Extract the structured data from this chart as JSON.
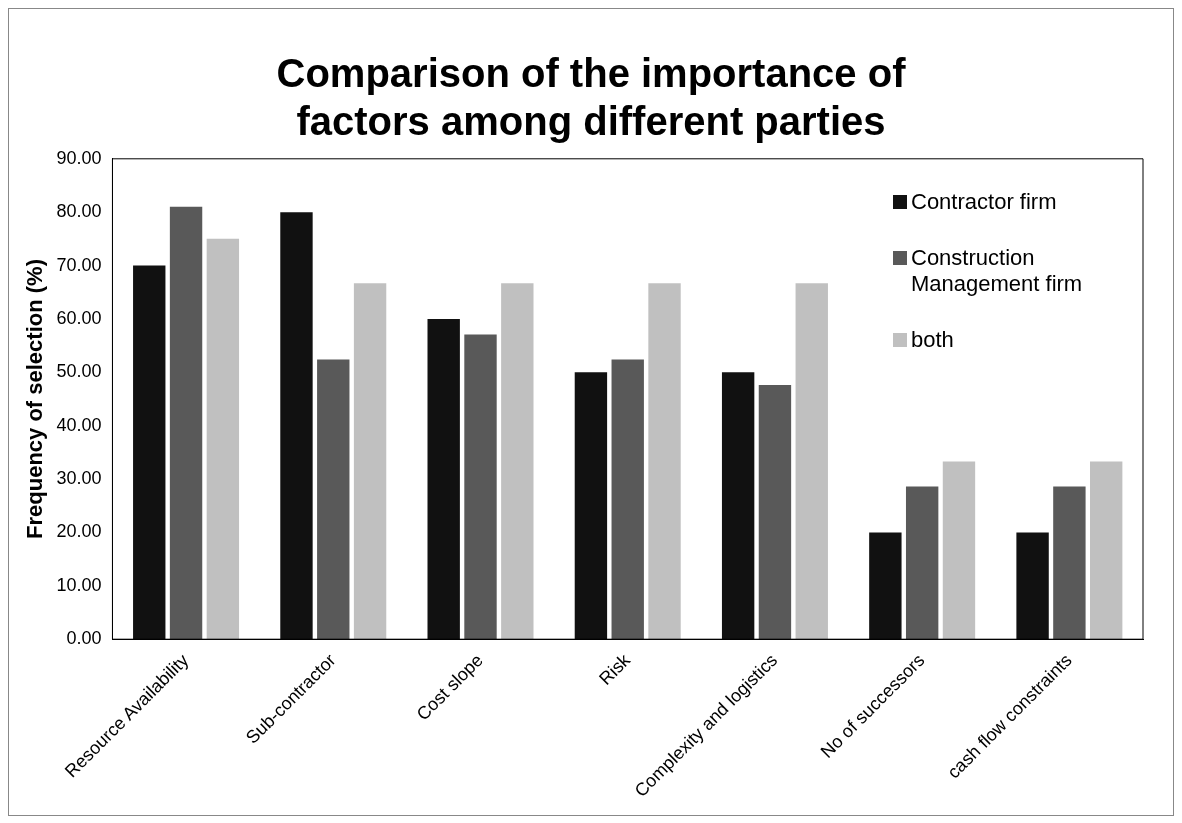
{
  "chart_data": {
    "type": "bar",
    "title": "Comparison of the importance of factors among different parties",
    "ylabel": "Frequency of selection (%)",
    "categories": [
      "Resource Availability",
      "Sub-contractor",
      "Cost slope",
      "Risk",
      "Complexity and logistics",
      "No of successors",
      "cash flow constraints"
    ],
    "series": [
      {
        "name": "Contractor firm",
        "color": "#111111",
        "values": [
          70,
          80,
          60,
          50,
          50,
          20,
          20
        ]
      },
      {
        "name": "Construction Management firm",
        "color": "#595959",
        "values": [
          81,
          52.4,
          57.1,
          52.4,
          47.6,
          28.6,
          28.6
        ]
      },
      {
        "name": "both",
        "color": "#c0c0c0",
        "values": [
          75,
          66.7,
          66.7,
          66.7,
          66.7,
          33.3,
          33.3
        ]
      }
    ],
    "ylim": [
      0,
      90
    ],
    "yticks": [
      {
        "value": 0,
        "label": "0.00"
      },
      {
        "value": 10,
        "label": "10.00"
      },
      {
        "value": 20,
        "label": "20.00"
      },
      {
        "value": 30,
        "label": "30.00"
      },
      {
        "value": 40,
        "label": "40.00"
      },
      {
        "value": 50,
        "label": "50.00"
      },
      {
        "value": 60,
        "label": "60.00"
      },
      {
        "value": 70,
        "label": "70.00"
      },
      {
        "value": 80,
        "label": "80.00"
      },
      {
        "value": 90,
        "label": "90.00"
      }
    ],
    "grid": false,
    "legend": "top right"
  }
}
